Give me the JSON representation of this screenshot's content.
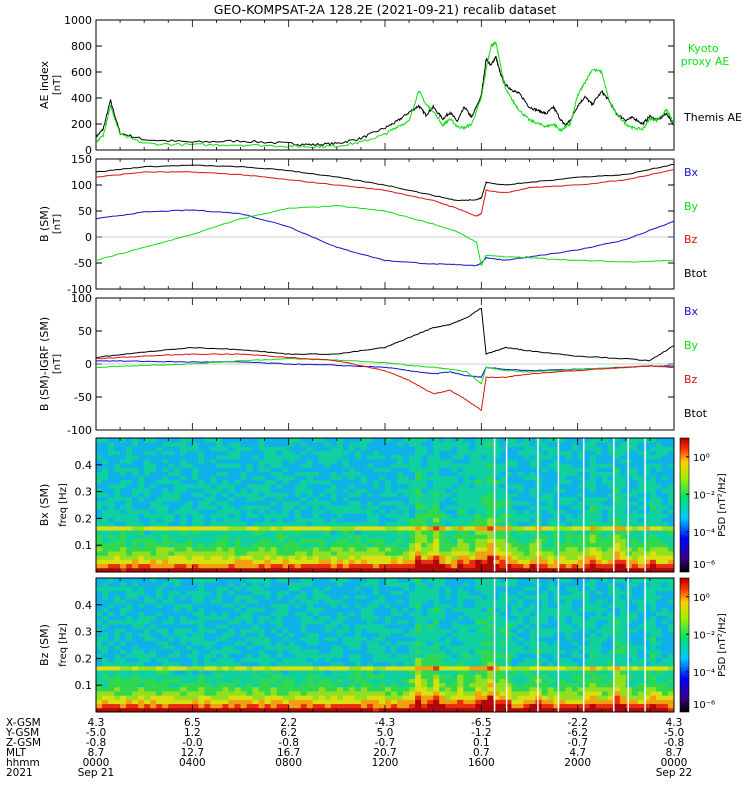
{
  "title": "GEO-KOMPSAT-2A 128.2E (2021-09-21) recalib dataset",
  "colors": {
    "black": "#000000",
    "red": "#dd1111",
    "green": "#11dd11",
    "blue": "#1111cc"
  },
  "chart_data": [
    {
      "type": "line",
      "panel": "ae_index",
      "ylabel": "AE index",
      "yunit": "[nT]",
      "ylim": [
        0,
        1000
      ],
      "yticks": [
        "0",
        "200",
        "400",
        "600",
        "800",
        "1000"
      ],
      "x_hours": [
        0,
        0.3,
        0.6,
        1,
        2,
        4,
        6,
        8,
        9,
        10,
        11,
        12,
        12.5,
        13,
        13.4,
        13.7,
        14,
        14.4,
        14.7,
        15,
        15.3,
        15.6,
        16,
        16.2,
        16.4,
        16.6,
        16.8,
        17,
        17.3,
        17.6,
        18,
        18.4,
        18.7,
        19,
        19.3,
        19.5,
        19.7,
        20,
        20.3,
        20.6,
        21,
        21.3,
        21.6,
        22,
        22.3,
        22.7,
        23,
        23.3,
        23.7,
        24
      ],
      "series": [
        {
          "name": "Themis AE",
          "color": "#000000",
          "values": [
            100,
            160,
            380,
            130,
            80,
            60,
            70,
            50,
            40,
            50,
            90,
            170,
            220,
            290,
            340,
            270,
            330,
            240,
            290,
            220,
            330,
            250,
            420,
            700,
            650,
            720,
            580,
            500,
            460,
            430,
            330,
            300,
            280,
            330,
            230,
            190,
            230,
            340,
            410,
            350,
            450,
            380,
            280,
            230,
            250,
            200,
            260,
            230,
            280,
            190
          ]
        },
        {
          "name": "Kyoto proxy AE",
          "color": "#11dd11",
          "values": [
            60,
            110,
            340,
            120,
            50,
            40,
            40,
            30,
            25,
            30,
            60,
            120,
            180,
            220,
            460,
            350,
            300,
            190,
            240,
            180,
            170,
            200,
            400,
            620,
            800,
            830,
            650,
            470,
            380,
            300,
            230,
            200,
            180,
            200,
            150,
            180,
            200,
            420,
            520,
            620,
            600,
            380,
            280,
            200,
            170,
            160,
            240,
            230,
            310,
            200
          ]
        }
      ]
    },
    {
      "type": "line",
      "panel": "b_gsm",
      "ylabel": "B (SM)",
      "yunit": "[nT]",
      "ylim": [
        -100,
        150
      ],
      "yticks": [
        "-100",
        "-50",
        "0",
        "50",
        "100",
        "150"
      ],
      "x_hours": [
        0,
        2,
        4,
        6,
        8,
        10,
        12,
        14,
        15,
        15.8,
        16,
        16.2,
        17,
        18,
        20,
        22,
        24
      ],
      "series": [
        {
          "name": "Bx",
          "color": "#1111cc",
          "values": [
            35,
            48,
            52,
            45,
            20,
            -20,
            -45,
            -52,
            -53,
            -55,
            -50,
            -40,
            -45,
            -38,
            -25,
            -5,
            30
          ]
        },
        {
          "name": "By",
          "color": "#11dd11",
          "values": [
            -45,
            -20,
            5,
            35,
            55,
            60,
            50,
            25,
            10,
            -10,
            -55,
            -35,
            -38,
            -40,
            -45,
            -48,
            -45
          ]
        },
        {
          "name": "Bz",
          "color": "#dd1111",
          "values": [
            115,
            125,
            125,
            120,
            110,
            100,
            90,
            70,
            55,
            40,
            45,
            90,
            85,
            95,
            100,
            110,
            130
          ]
        },
        {
          "name": "Btot",
          "color": "#000000",
          "values": [
            125,
            135,
            138,
            135,
            128,
            115,
            100,
            80,
            70,
            72,
            75,
            105,
            100,
            105,
            115,
            120,
            140
          ]
        }
      ]
    },
    {
      "type": "line",
      "panel": "b_minus_igrf",
      "ylabel": "B (SM)-IGRF (SM)",
      "yunit": "[nT]",
      "ylim": [
        -100,
        100
      ],
      "yticks": [
        "-100",
        "-50",
        "0",
        "50",
        "100"
      ],
      "x_hours": [
        0,
        2,
        4,
        6,
        8,
        10,
        12,
        13,
        14,
        14.7,
        15.4,
        16,
        16.2,
        17,
        18,
        20,
        22,
        23,
        24
      ],
      "series": [
        {
          "name": "Bx",
          "color": "#1111cc",
          "values": [
            5,
            4,
            3,
            3,
            0,
            -2,
            -5,
            -10,
            -15,
            -12,
            -18,
            -20,
            -5,
            -8,
            -10,
            -8,
            -5,
            -3,
            -3
          ]
        },
        {
          "name": "By",
          "color": "#11dd11",
          "values": [
            -5,
            -2,
            0,
            5,
            8,
            6,
            2,
            -2,
            -5,
            -8,
            -12,
            -30,
            -5,
            -10,
            -12,
            -8,
            -5,
            -3,
            -5
          ]
        },
        {
          "name": "Bz",
          "color": "#dd1111",
          "values": [
            8,
            12,
            15,
            15,
            10,
            5,
            -10,
            -25,
            -45,
            -40,
            -55,
            -70,
            -20,
            -20,
            -15,
            -10,
            -5,
            -3,
            -5
          ]
        },
        {
          "name": "Btot",
          "color": "#000000",
          "values": [
            10,
            18,
            25,
            22,
            15,
            15,
            25,
            40,
            55,
            60,
            70,
            85,
            15,
            25,
            20,
            12,
            8,
            5,
            28
          ]
        }
      ]
    },
    {
      "type": "heatmap",
      "panel": "bx_spectrogram",
      "ylabel": "Bx (SM)",
      "yunit": "freq [Hz]",
      "ylim": [
        0,
        0.5
      ],
      "yticks": [
        "0.1",
        "0.2",
        "0.3",
        "0.4"
      ],
      "colorbar": {
        "label": "PSD [nT²/Hz]",
        "ticks": [
          "10⁰",
          "10⁻²",
          "10⁻⁴",
          "10⁻⁶"
        ]
      }
    },
    {
      "type": "heatmap",
      "panel": "bz_spectrogram",
      "ylabel": "Bz (SM)",
      "yunit": "freq [Hz]",
      "ylim": [
        0,
        0.5
      ],
      "yticks": [
        "0.1",
        "0.2",
        "0.3",
        "0.4"
      ],
      "colorbar": {
        "label": "PSD [nT²/Hz]",
        "ticks": [
          "10⁰",
          "10⁻²",
          "10⁻⁴",
          "10⁻⁶"
        ]
      }
    }
  ],
  "legends": {
    "ae": {
      "kyoto": "Kyoto proxy AE",
      "themis": "Themis AE"
    },
    "b": [
      "Bx",
      "By",
      "Bz",
      "Btot"
    ]
  },
  "orbit_table": {
    "row_labels": [
      "X-GSM",
      "Y-GSM",
      "Z-GSM",
      "MLT",
      "hhmm",
      "2021"
    ],
    "columns": [
      [
        "4.3",
        "-5.0",
        "-0.8",
        "8.7",
        "0000",
        "Sep 21"
      ],
      [
        "6.5",
        "1.2",
        "-0.0",
        "12.7",
        "0400",
        ""
      ],
      [
        "2.2",
        "6.2",
        "-0.8",
        "16.7",
        "0800",
        ""
      ],
      [
        "-4.3",
        "5.0",
        "-0.7",
        "20.7",
        "1200",
        ""
      ],
      [
        "-6.5",
        "-1.2",
        "0.1",
        "0.7",
        "1600",
        ""
      ],
      [
        "-2.2",
        "-6.2",
        "-0.7",
        "4.7",
        "2000",
        ""
      ],
      [
        "4.3",
        "-5.0",
        "-0.8",
        "8.7",
        "0000",
        "Sep 22"
      ]
    ]
  }
}
